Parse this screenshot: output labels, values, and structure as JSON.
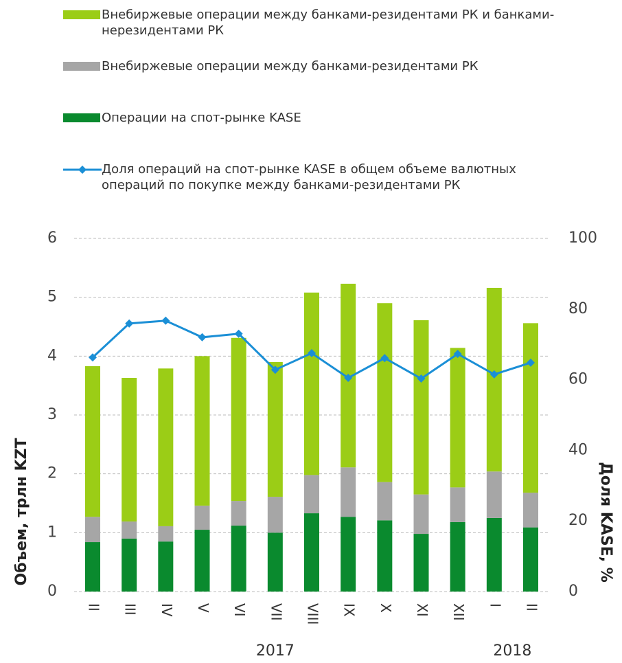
{
  "chart_data": {
    "type": "bar",
    "categories": [
      "II",
      "III",
      "IV",
      "V",
      "VI",
      "VII",
      "VIII",
      "IX",
      "X",
      "XI",
      "XII",
      "I",
      "II"
    ],
    "year_labels": [
      "2017",
      "2018"
    ],
    "series": [
      {
        "name": "Внебиржевые операции между банками-резидентами РК и банками-нерезидентами РК",
        "color": "#9bcd16",
        "values": [
          2.56,
          2.44,
          2.68,
          2.54,
          2.77,
          2.29,
          3.1,
          3.12,
          3.04,
          2.96,
          2.37,
          3.12,
          2.88
        ]
      },
      {
        "name": "Внебиржевые операции между банками-резидентами РК",
        "color": "#a6a6a6",
        "values": [
          0.43,
          0.29,
          0.26,
          0.41,
          0.42,
          0.61,
          0.65,
          0.84,
          0.65,
          0.67,
          0.59,
          0.79,
          0.59
        ]
      },
      {
        "name": "Операции на спот-рынке KASE",
        "color": "#0a8a2e",
        "values": [
          0.84,
          0.9,
          0.85,
          1.05,
          1.12,
          1.0,
          1.33,
          1.27,
          1.21,
          0.98,
          1.18,
          1.25,
          1.09
        ]
      },
      {
        "name": "Доля операций на спот-рынке KASE в общем объеме валютных операций по покупке между банками-резидентами РК",
        "color": "#1b8fd6",
        "type": "line",
        "axis": "y2",
        "values": [
          66.3,
          75.9,
          76.7,
          72.0,
          73.0,
          62.8,
          67.5,
          60.5,
          66.1,
          60.3,
          67.3,
          61.5,
          64.8
        ]
      }
    ],
    "ylabel": "Объем, трлн KZT",
    "y2label": "Доля KASE, %",
    "ylim": [
      0,
      6
    ],
    "yticks": [
      0,
      1,
      2,
      3,
      4,
      5,
      6
    ],
    "y2lim": [
      0,
      100
    ],
    "y2ticks": [
      0,
      20,
      40,
      60,
      80,
      100
    ],
    "grid": true
  }
}
